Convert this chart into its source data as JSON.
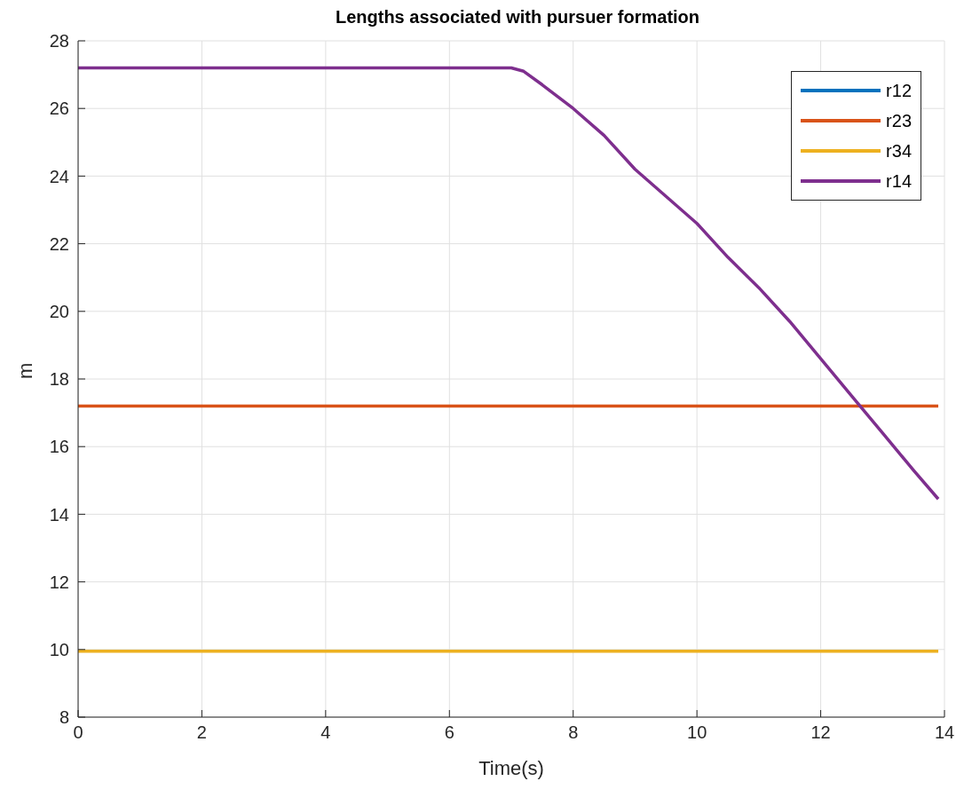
{
  "chart_data": {
    "type": "line",
    "title": "Lengths associated with pursuer formation",
    "xlabel": "Time(s)",
    "ylabel": "m",
    "xlim": [
      0,
      14
    ],
    "xticks": [
      0,
      2,
      4,
      6,
      8,
      10,
      12,
      14
    ],
    "ylim": [
      8,
      28
    ],
    "yticks": [
      8,
      10,
      12,
      14,
      16,
      18,
      20,
      22,
      24,
      26,
      28
    ],
    "grid": true,
    "legend": "top right",
    "line_style": "solid",
    "marker": "none",
    "series": [
      {
        "name": "r12",
        "color": "#0072bd"
      },
      {
        "name": "r23",
        "color": "#d95319",
        "x": [
          0,
          13.9
        ],
        "values": [
          17.2,
          17.2
        ]
      },
      {
        "name": "r34",
        "color": "#edb120",
        "x": [
          0,
          13.9
        ],
        "values": [
          9.95,
          9.95
        ]
      },
      {
        "name": "r14",
        "color": "#7e2f8e",
        "x": [
          0,
          7,
          7.2,
          7.5,
          8,
          8.5,
          9,
          9.5,
          10,
          10.5,
          11,
          11.5,
          12,
          12.5,
          13,
          13.5,
          13.9
        ],
        "values": [
          27.2,
          27.2,
          27.1,
          26.7,
          26.0,
          25.2,
          24.2,
          23.4,
          22.6,
          21.6,
          20.7,
          19.7,
          18.6,
          17.5,
          16.4,
          15.3,
          14.45
        ]
      }
    ]
  }
}
